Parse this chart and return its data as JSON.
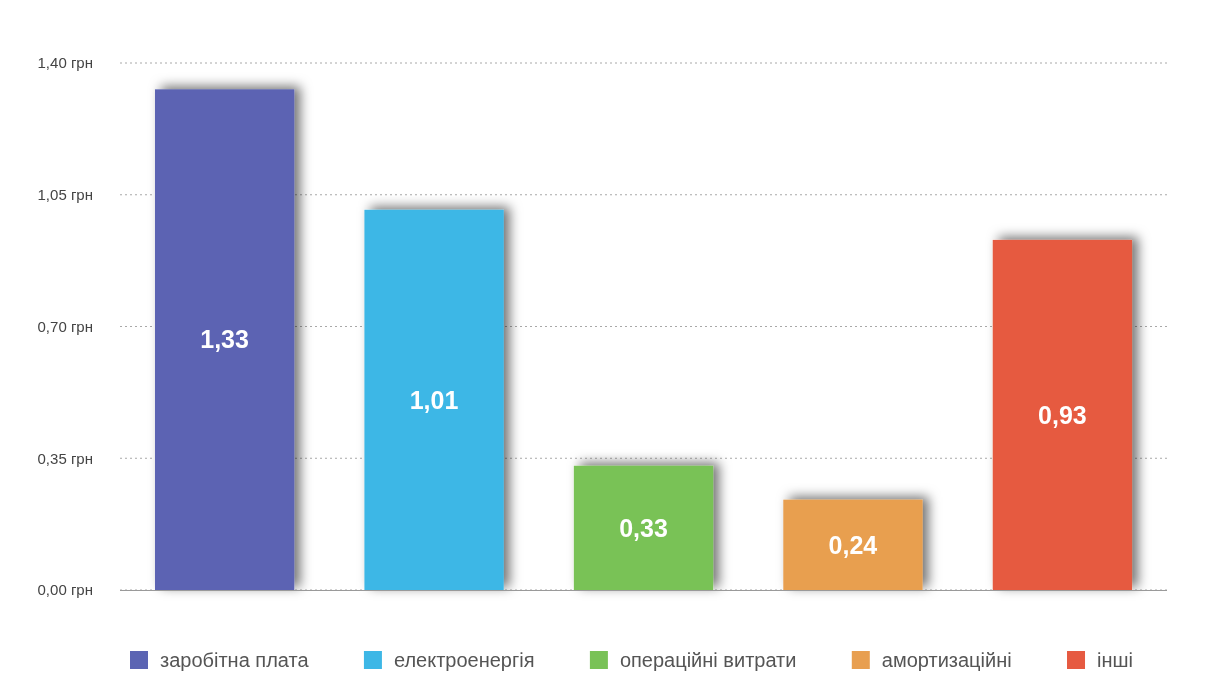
{
  "chart_data": {
    "type": "bar",
    "categories": [
      null,
      null,
      null,
      null,
      null
    ],
    "series": [
      {
        "name": "заробітна плата",
        "color": "#5b64b3",
        "values": [
          1.33,
          null,
          null,
          null,
          null
        ],
        "value_labels": [
          "1,33",
          null,
          null,
          null,
          null
        ]
      },
      {
        "name": "електроенергія",
        "color": "#3db7e6",
        "values": [
          null,
          1.01,
          null,
          null,
          null
        ],
        "value_labels": [
          null,
          "1,01",
          null,
          null,
          null
        ]
      },
      {
        "name": "операційні витрати",
        "color": "#79c257",
        "values": [
          null,
          null,
          0.33,
          null,
          null
        ],
        "value_labels": [
          null,
          null,
          "0,33",
          null,
          null
        ]
      },
      {
        "name": "амортизаційні",
        "color": "#e89f50",
        "values": [
          null,
          null,
          null,
          0.24,
          null
        ],
        "value_labels": [
          null,
          null,
          null,
          "0,24",
          null
        ]
      },
      {
        "name": "інші",
        "color": "#e65a41",
        "values": [
          null,
          null,
          null,
          null,
          0.93
        ],
        "value_labels": [
          null,
          null,
          null,
          null,
          "0,93"
        ]
      }
    ],
    "ylim": [
      0,
      1.4
    ],
    "yticks": [
      {
        "value": 0,
        "label": "0,00 грн"
      },
      {
        "value": 0.35,
        "label": "0,35 грн"
      },
      {
        "value": 0.7,
        "label": "0,70 грн"
      },
      {
        "value": 1.05,
        "label": "1,05 грн"
      },
      {
        "value": 1.4,
        "label": "1,40 грн"
      }
    ],
    "grid": "y",
    "legend": "bottom",
    "tick_labels": "y"
  }
}
